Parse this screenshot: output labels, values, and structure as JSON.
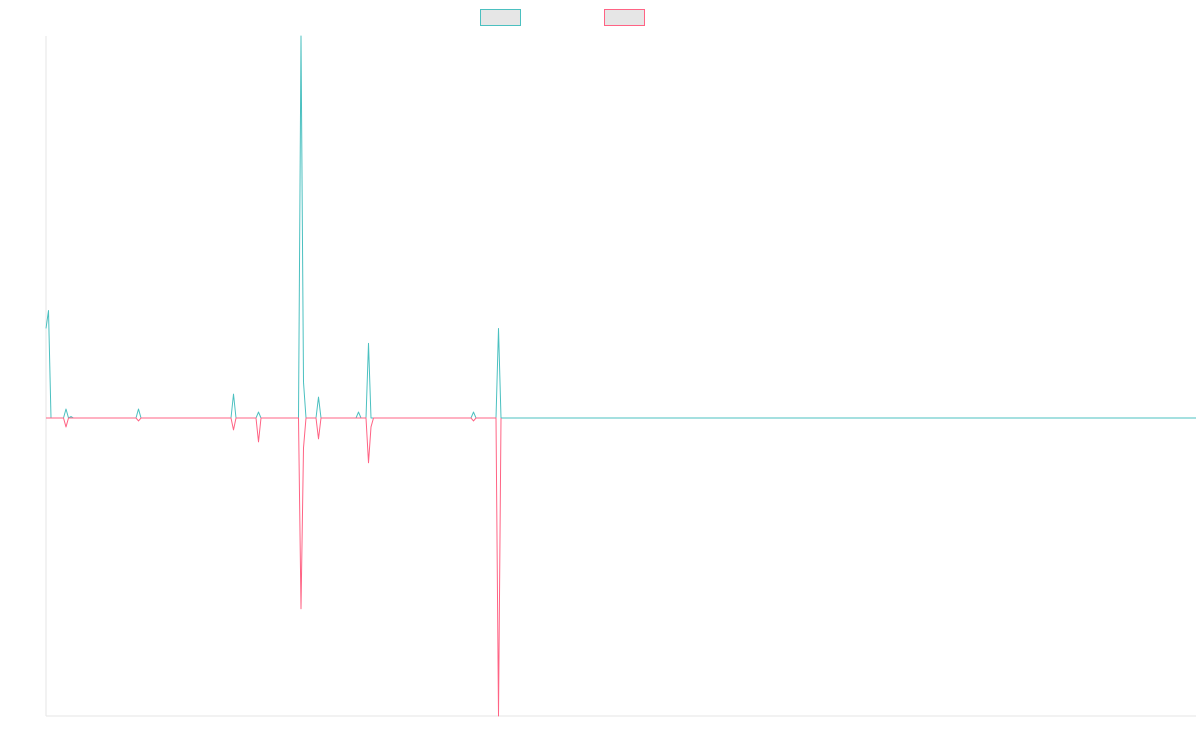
{
  "chart_data": {
    "type": "line",
    "title": "",
    "xlabel": "",
    "ylabel": "",
    "grid": false,
    "legend_position": "top-center",
    "x_range": [
      0,
      460
    ],
    "ylim": [
      -1.0,
      1.28
    ],
    "colors": {
      "series_a": "#4bc0c0",
      "series_b": "#ff6384",
      "legend_fill": "#e6e6e6",
      "axis": "#e6e6e6"
    },
    "series": [
      {
        "name": "",
        "color": "#4bc0c0",
        "points": [
          [
            0,
            0.3
          ],
          [
            1,
            0.36
          ],
          [
            2,
            0
          ],
          [
            7,
            0
          ],
          [
            8,
            0.03
          ],
          [
            9,
            0
          ],
          [
            10,
            0.005
          ],
          [
            11,
            0
          ],
          [
            36,
            0
          ],
          [
            37,
            0.03
          ],
          [
            38,
            0
          ],
          [
            74,
            0
          ],
          [
            75,
            0.08
          ],
          [
            76,
            0
          ],
          [
            84,
            0
          ],
          [
            85,
            0.02
          ],
          [
            86,
            0
          ],
          [
            101,
            0
          ],
          [
            102,
            1.28
          ],
          [
            103,
            0.12
          ],
          [
            104,
            0
          ],
          [
            108,
            0
          ],
          [
            109,
            0.07
          ],
          [
            110,
            0
          ],
          [
            124,
            0
          ],
          [
            125,
            0.02
          ],
          [
            126,
            0
          ],
          [
            128,
            0
          ],
          [
            129,
            0.25
          ],
          [
            130,
            0
          ],
          [
            170,
            0
          ],
          [
            171,
            0.02
          ],
          [
            172,
            0
          ],
          [
            180,
            0
          ],
          [
            181,
            0.3
          ],
          [
            182,
            0
          ],
          [
            460,
            0
          ]
        ]
      },
      {
        "name": "",
        "color": "#ff6384",
        "points": [
          [
            0,
            0
          ],
          [
            7,
            0
          ],
          [
            8,
            -0.03
          ],
          [
            9,
            0
          ],
          [
            36,
            0
          ],
          [
            37,
            -0.01
          ],
          [
            38,
            0
          ],
          [
            74,
            0
          ],
          [
            75,
            -0.04
          ],
          [
            76,
            0
          ],
          [
            84,
            0
          ],
          [
            85,
            -0.08
          ],
          [
            86,
            0
          ],
          [
            101,
            0
          ],
          [
            102,
            -0.64
          ],
          [
            103,
            -0.1
          ],
          [
            104,
            0
          ],
          [
            108,
            0
          ],
          [
            109,
            -0.07
          ],
          [
            110,
            0
          ],
          [
            128,
            0
          ],
          [
            129,
            -0.15
          ],
          [
            130,
            -0.03
          ],
          [
            131,
            0
          ],
          [
            170,
            0
          ],
          [
            171,
            -0.01
          ],
          [
            172,
            0
          ],
          [
            180,
            0
          ],
          [
            181,
            -1.0
          ],
          [
            182,
            0
          ]
        ]
      }
    ]
  }
}
